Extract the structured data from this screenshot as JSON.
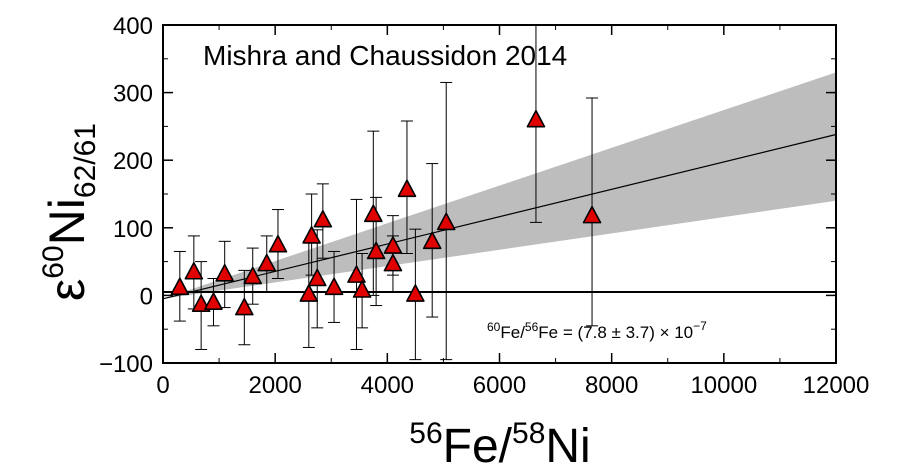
{
  "chart_data": {
    "type": "scatter",
    "title": "Mishra and Chaussidon 2014",
    "xlabel": {
      "sup1": "56",
      "base1": "Fe/",
      "sup2": "58",
      "base2": "Ni"
    },
    "ylabel": {
      "base": "ε",
      "sup": "60",
      "main": "Ni",
      "sub": "62/61"
    },
    "annotation": {
      "sup1": "60",
      "t1": "Fe/",
      "sup2": "56",
      "t2": "Fe =  (7.8 ± 3.7) × 10",
      "sup3": "−7"
    },
    "xlim": [
      0,
      12000
    ],
    "ylim": [
      -100,
      400
    ],
    "x_ticks": [
      0,
      2000,
      4000,
      6000,
      8000,
      10000,
      12000
    ],
    "x_tick_labels": [
      "0",
      "2000",
      "4000",
      "6000",
      "8000",
      "10000",
      "12000"
    ],
    "y_ticks": [
      -100,
      0,
      100,
      200,
      300,
      400
    ],
    "y_tick_labels": [
      "−100",
      "0",
      "100",
      "200",
      "300",
      "400"
    ],
    "reference_line_y": 5,
    "fit_line": {
      "x": [
        0,
        12000
      ],
      "y": [
        -5,
        238
      ]
    },
    "confidence_band": {
      "x": [
        0,
        12000
      ],
      "y_lower": [
        -5,
        140
      ],
      "y_upper": [
        -5,
        330
      ]
    },
    "marker_color": "#e00000",
    "band_color": "#bdbdbd",
    "points": [
      {
        "x": 300,
        "y": 12,
        "ylo": -38,
        "yhi": 65
      },
      {
        "x": 550,
        "y": 35,
        "ylo": -20,
        "yhi": 88
      },
      {
        "x": 680,
        "y": -13,
        "ylo": -80,
        "yhi": 50
      },
      {
        "x": 900,
        "y": -10,
        "ylo": -45,
        "yhi": 25
      },
      {
        "x": 1100,
        "y": 32,
        "ylo": -18,
        "yhi": 80
      },
      {
        "x": 1450,
        "y": -18,
        "ylo": -73,
        "yhi": 37
      },
      {
        "x": 1600,
        "y": 28,
        "ylo": -13,
        "yhi": 70
      },
      {
        "x": 1850,
        "y": 47,
        "ylo": 5,
        "yhi": 88
      },
      {
        "x": 2050,
        "y": 75,
        "ylo": 25,
        "yhi": 127
      },
      {
        "x": 2600,
        "y": 2,
        "ylo": -77,
        "yhi": 80
      },
      {
        "x": 2650,
        "y": 88,
        "ylo": 30,
        "yhi": 150
      },
      {
        "x": 2750,
        "y": 25,
        "ylo": -48,
        "yhi": 97
      },
      {
        "x": 2850,
        "y": 112,
        "ylo": 55,
        "yhi": 165
      },
      {
        "x": 3050,
        "y": 12,
        "ylo": -40,
        "yhi": 65
      },
      {
        "x": 3450,
        "y": 30,
        "ylo": -80,
        "yhi": 142
      },
      {
        "x": 3550,
        "y": 8,
        "ylo": -48,
        "yhi": 62
      },
      {
        "x": 3750,
        "y": 120,
        "ylo": 0,
        "yhi": 243
      },
      {
        "x": 3800,
        "y": 65,
        "ylo": -15,
        "yhi": 145
      },
      {
        "x": 4100,
        "y": 73,
        "ylo": 30,
        "yhi": 118
      },
      {
        "x": 4100,
        "y": 47,
        "ylo": 5,
        "yhi": 88
      },
      {
        "x": 4350,
        "y": 157,
        "ylo": 62,
        "yhi": 258
      },
      {
        "x": 4500,
        "y": 2,
        "ylo": -95,
        "yhi": 98
      },
      {
        "x": 4800,
        "y": 80,
        "ylo": -32,
        "yhi": 195
      },
      {
        "x": 5050,
        "y": 108,
        "ylo": -95,
        "yhi": 315
      },
      {
        "x": 6650,
        "y": 260,
        "ylo": 108,
        "yhi": 400
      },
      {
        "x": 7650,
        "y": 118,
        "ylo": -45,
        "yhi": 292
      }
    ]
  }
}
